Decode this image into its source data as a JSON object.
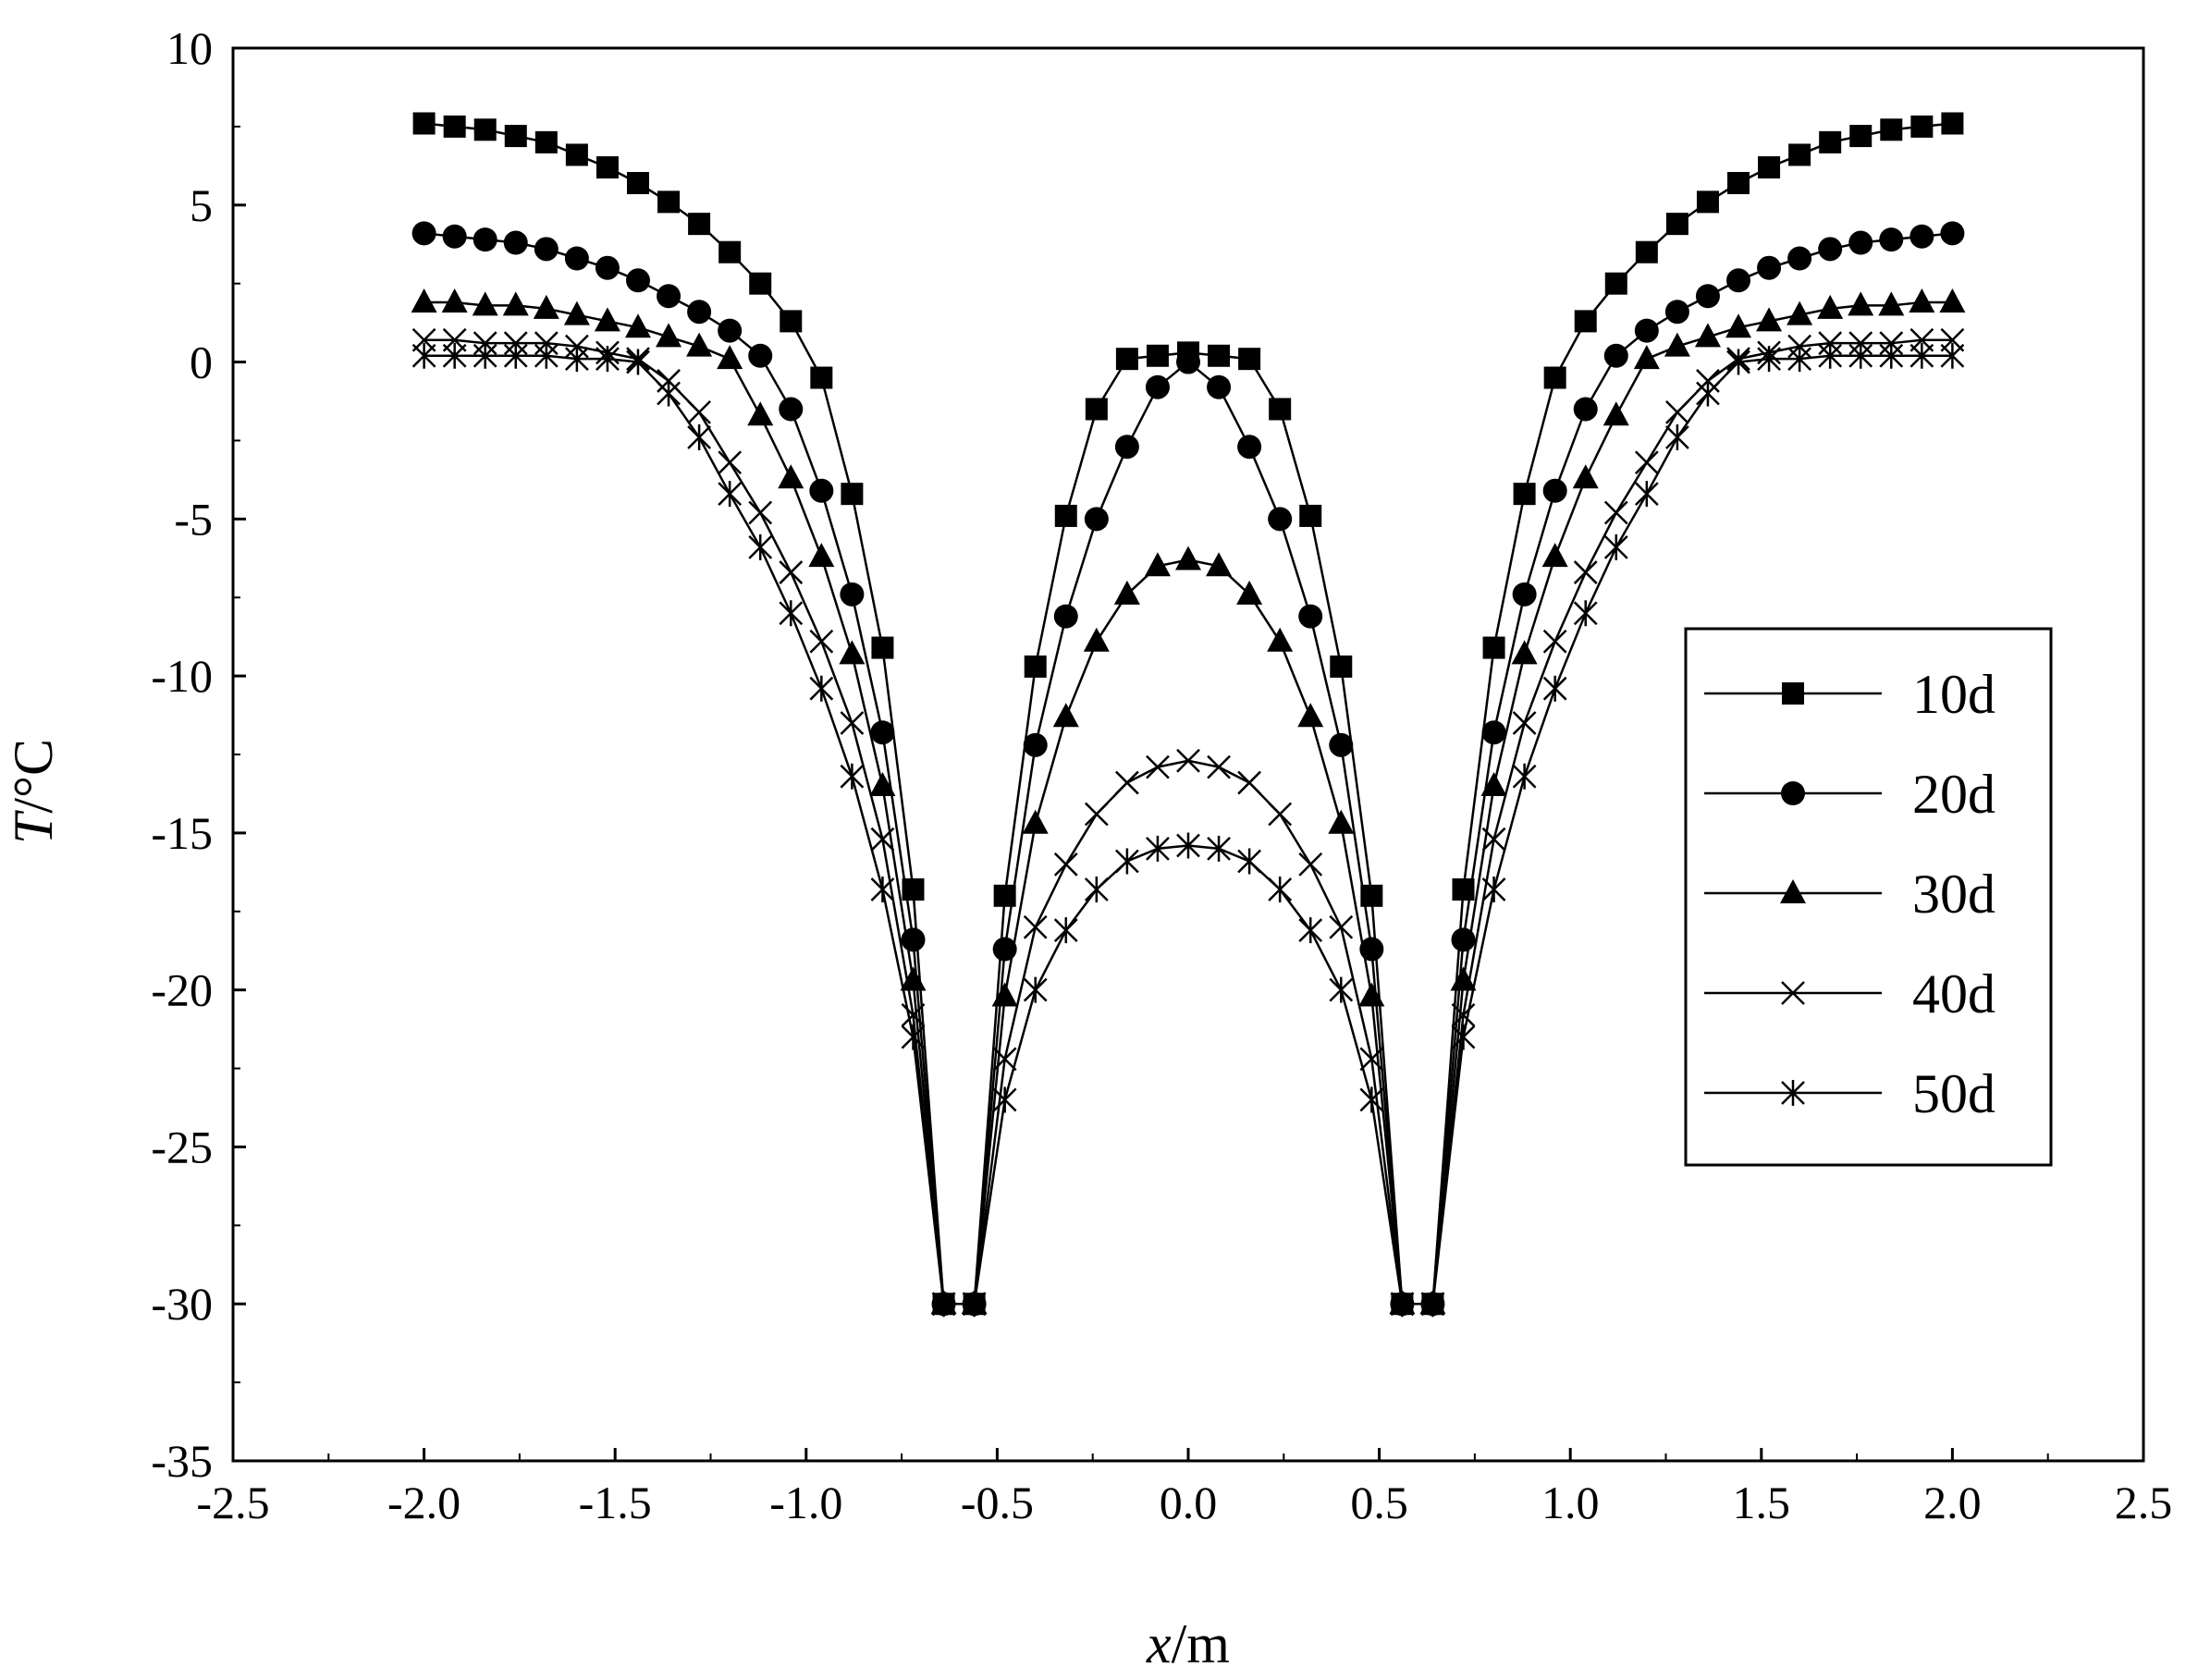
{
  "chart_data": {
    "type": "line",
    "title": "",
    "xlabel_italic": "x",
    "xlabel_unit": "/m",
    "ylabel_italic": "T",
    "ylabel_unit": "/°C",
    "xlim": [
      -2.5,
      2.5
    ],
    "ylim": [
      -35,
      10
    ],
    "x_ticks": [
      "-2.5",
      "-2.0",
      "-1.5",
      "-1.0",
      "-0.5",
      "0.0",
      "0.5",
      "1.0",
      "1.5",
      "2.0",
      "2.5"
    ],
    "y_ticks": [
      "10",
      "5",
      "0",
      "-5",
      "-10",
      "-15",
      "-20",
      "-25",
      "-30",
      "-35"
    ],
    "grid": false,
    "legend_position": "right",
    "x": [
      -2.0,
      -1.92,
      -1.84,
      -1.76,
      -1.68,
      -1.6,
      -1.52,
      -1.44,
      -1.36,
      -1.28,
      -1.2,
      -1.12,
      -1.04,
      -0.96,
      -0.88,
      -0.8,
      -0.72,
      -0.64,
      -0.56,
      -0.48,
      -0.4,
      -0.32,
      -0.24,
      -0.16,
      -0.08,
      0.0,
      0.08,
      0.16,
      0.24,
      0.32,
      0.4,
      0.48,
      0.56,
      0.64,
      0.72,
      0.8,
      0.88,
      0.96,
      1.04,
      1.12,
      1.2,
      1.28,
      1.36,
      1.44,
      1.52,
      1.6,
      1.68,
      1.76,
      1.84,
      1.92,
      2.0
    ],
    "series": [
      {
        "name": "10d",
        "marker": "square",
        "values": [
          7.6,
          7.5,
          7.4,
          7.2,
          7.0,
          6.6,
          6.2,
          5.7,
          5.1,
          4.4,
          3.5,
          2.5,
          1.3,
          -0.5,
          -4.2,
          -9.1,
          -16.8,
          -30.0,
          -30.0,
          -17.0,
          -9.7,
          -4.9,
          -1.5,
          0.1,
          0.2,
          0.3,
          0.2,
          0.1,
          -1.5,
          -4.9,
          -9.7,
          -17.0,
          -30.0,
          -30.0,
          -16.8,
          -9.1,
          -4.2,
          -0.5,
          1.3,
          2.5,
          3.5,
          4.4,
          5.1,
          5.7,
          6.2,
          6.6,
          7.0,
          7.2,
          7.4,
          7.5,
          7.6
        ]
      },
      {
        "name": "20d",
        "marker": "circle",
        "values": [
          4.1,
          4.0,
          3.9,
          3.8,
          3.6,
          3.3,
          3.0,
          2.6,
          2.1,
          1.6,
          1.0,
          0.2,
          -1.5,
          -4.1,
          -7.4,
          -11.8,
          -18.4,
          -30.0,
          -30.0,
          -18.7,
          -12.2,
          -8.1,
          -5.0,
          -2.7,
          -0.8,
          0.0,
          -0.8,
          -2.7,
          -5.0,
          -8.1,
          -12.2,
          -18.7,
          -30.0,
          -30.0,
          -18.4,
          -11.8,
          -7.4,
          -4.1,
          -1.5,
          0.2,
          1.0,
          1.6,
          2.1,
          2.6,
          3.0,
          3.3,
          3.6,
          3.8,
          3.9,
          4.0,
          4.1
        ]
      },
      {
        "name": "30d",
        "marker": "triangle",
        "values": [
          1.9,
          1.9,
          1.8,
          1.8,
          1.7,
          1.5,
          1.3,
          1.1,
          0.8,
          0.5,
          0.1,
          -1.7,
          -3.7,
          -6.2,
          -9.3,
          -13.5,
          -19.7,
          -30.0,
          -30.0,
          -20.2,
          -14.7,
          -11.3,
          -8.9,
          -7.4,
          -6.5,
          -6.3,
          -6.5,
          -7.4,
          -8.9,
          -11.3,
          -14.7,
          -20.2,
          -30.0,
          -30.0,
          -19.7,
          -13.5,
          -9.3,
          -6.2,
          -3.7,
          -1.7,
          0.1,
          0.5,
          0.8,
          1.1,
          1.3,
          1.5,
          1.7,
          1.8,
          1.8,
          1.9,
          1.9
        ]
      },
      {
        "name": "40d",
        "marker": "x",
        "values": [
          0.7,
          0.7,
          0.6,
          0.6,
          0.6,
          0.5,
          0.3,
          0.1,
          -0.6,
          -1.6,
          -3.2,
          -4.8,
          -6.7,
          -8.9,
          -11.5,
          -15.2,
          -20.8,
          -30.0,
          -30.0,
          -22.2,
          -18.0,
          -16.0,
          -14.4,
          -13.4,
          -12.9,
          -12.7,
          -12.9,
          -13.4,
          -14.4,
          -16.0,
          -18.0,
          -22.2,
          -30.0,
          -30.0,
          -20.8,
          -15.2,
          -11.5,
          -8.9,
          -6.7,
          -4.8,
          -3.2,
          -1.6,
          -0.6,
          0.1,
          0.3,
          0.5,
          0.6,
          0.6,
          0.6,
          0.7,
          0.7
        ]
      },
      {
        "name": "50d",
        "marker": "asterisk",
        "values": [
          0.2,
          0.2,
          0.2,
          0.2,
          0.2,
          0.1,
          0.1,
          0.0,
          -1.0,
          -2.4,
          -4.2,
          -5.9,
          -8.0,
          -10.4,
          -13.2,
          -16.8,
          -21.5,
          -30.0,
          -30.0,
          -23.5,
          -20.0,
          -18.1,
          -16.8,
          -15.9,
          -15.5,
          -15.4,
          -15.5,
          -15.9,
          -16.8,
          -18.1,
          -20.0,
          -23.5,
          -30.0,
          -30.0,
          -21.5,
          -16.8,
          -13.2,
          -10.4,
          -8.0,
          -5.9,
          -4.2,
          -2.4,
          -1.0,
          0.0,
          0.1,
          0.1,
          0.2,
          0.2,
          0.2,
          0.2,
          0.2
        ]
      }
    ]
  }
}
